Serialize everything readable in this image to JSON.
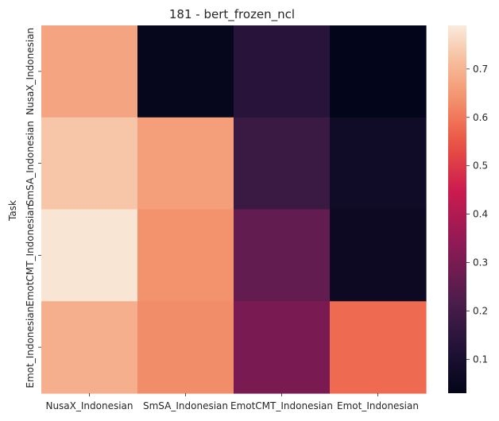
{
  "chart_data": {
    "type": "heatmap",
    "title": "181 - bert_frozen_ncl",
    "xlabel": "",
    "ylabel": "Task",
    "x_categories": [
      "NusaX_Indonesian",
      "SmSA_Indonesian",
      "EmotCMT_Indonesian",
      "Emot_Indonesian"
    ],
    "y_categories": [
      "NusaX_Indonesian",
      "SmSA_Indonesian",
      "EmotCMT_Indonesian",
      "Emot_Indonesian"
    ],
    "values": [
      [
        0.67,
        0.04,
        0.14,
        0.03
      ],
      [
        0.73,
        0.66,
        0.18,
        0.07
      ],
      [
        0.78,
        0.64,
        0.26,
        0.06
      ],
      [
        0.69,
        0.63,
        0.3,
        0.58
      ]
    ],
    "colorbar": {
      "vmin": 0.03,
      "vmax": 0.79,
      "ticks": [
        0.1,
        0.2,
        0.3,
        0.4,
        0.5,
        0.6,
        0.7
      ],
      "tick_labels": [
        "0.1",
        "0.2",
        "0.3",
        "0.4",
        "0.5",
        "0.6",
        "0.7"
      ],
      "colormap": "rocket"
    },
    "grid": false
  }
}
